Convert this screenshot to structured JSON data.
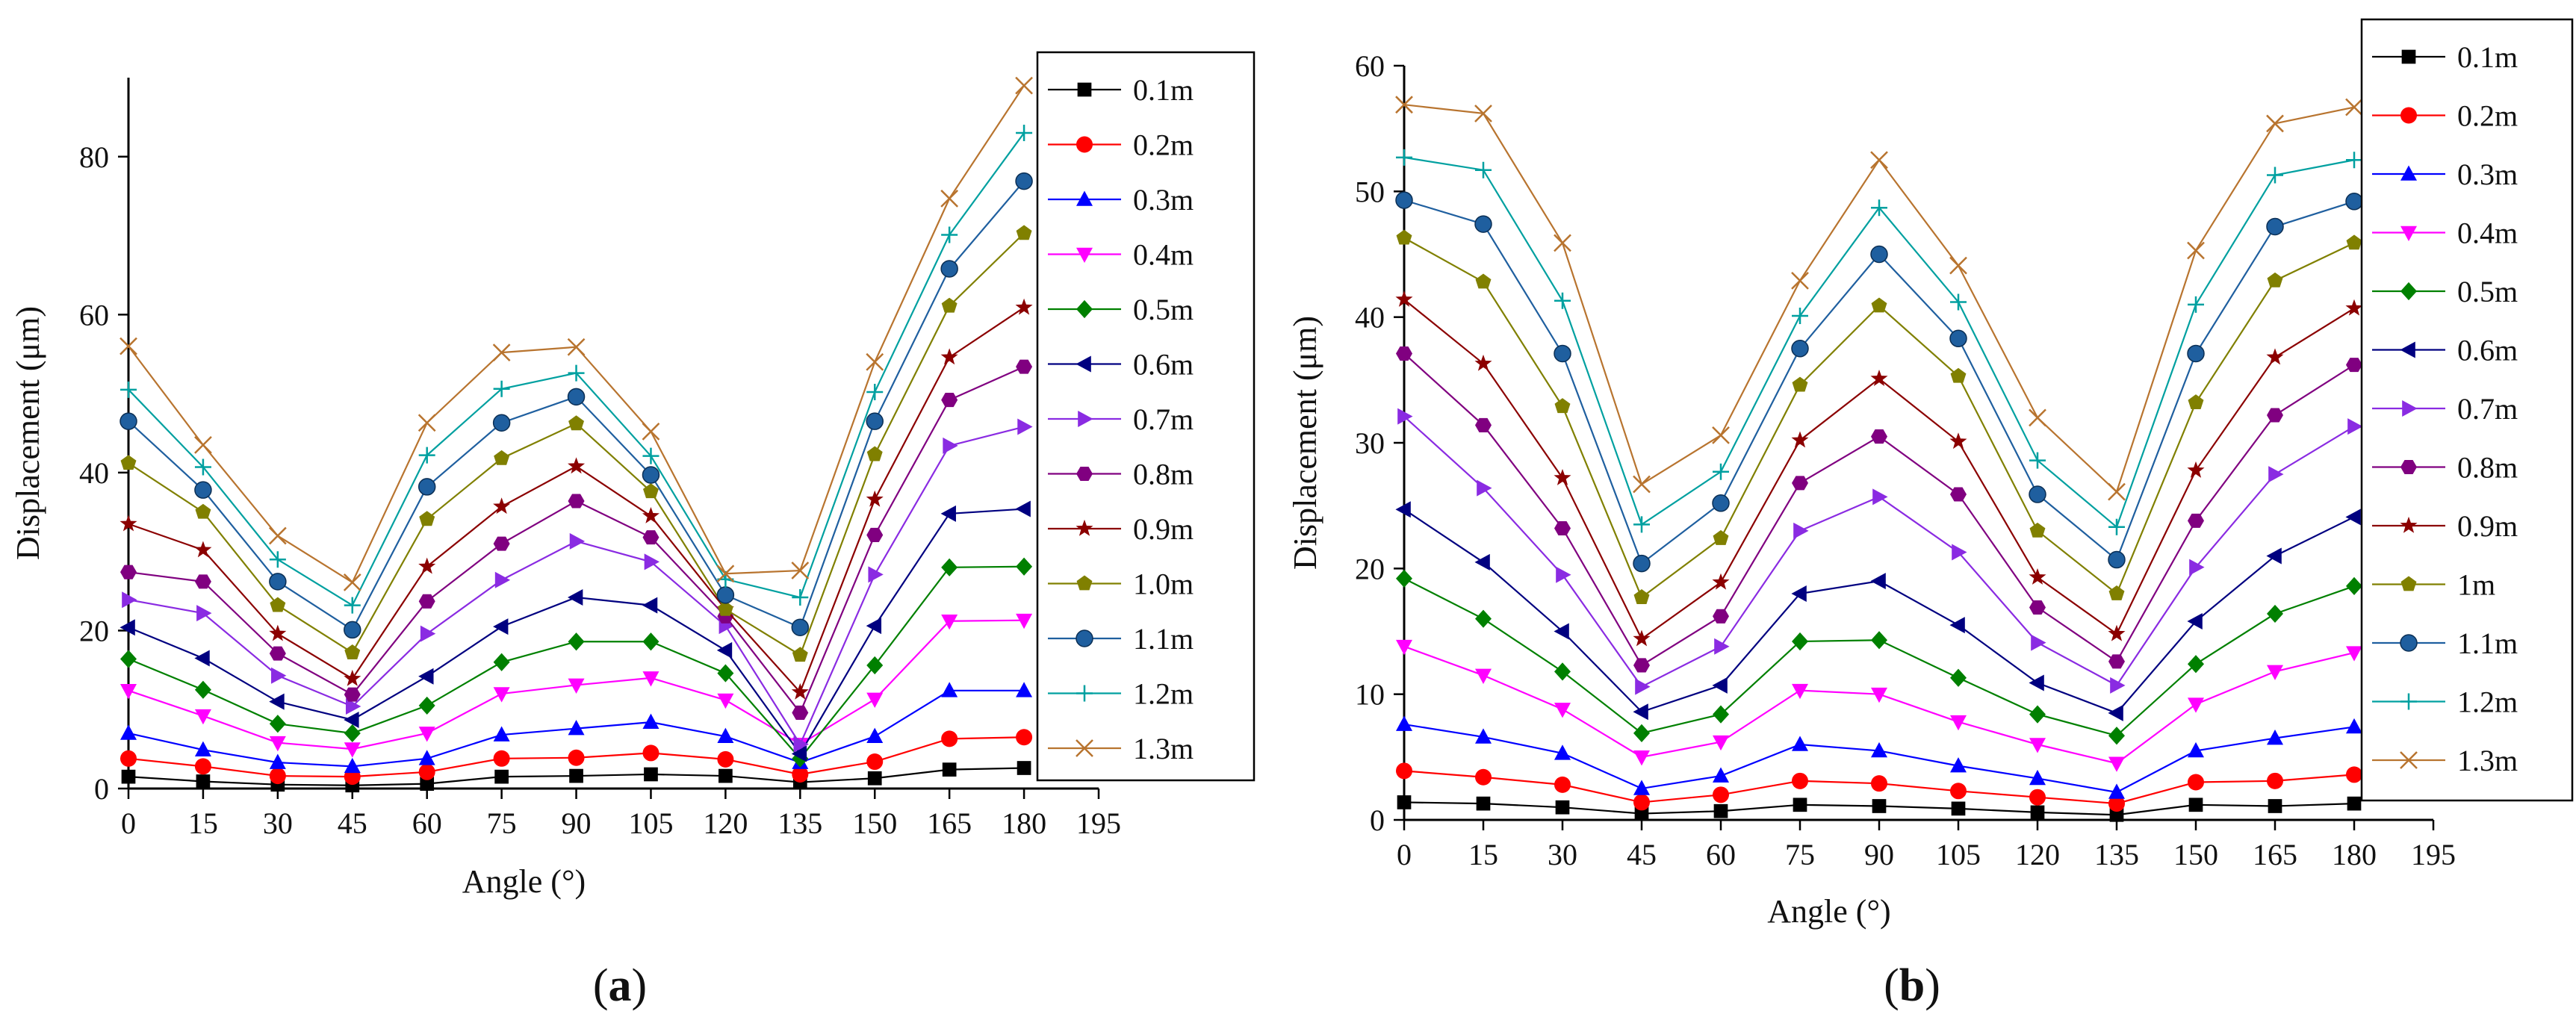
{
  "chart_data": [
    {
      "type": "line",
      "panel_label": "a",
      "xlabel": "Angle (°)",
      "ylabel": "Displacement (μm)",
      "xlim": [
        0,
        195
      ],
      "ylim": [
        0,
        90
      ],
      "xticks": [
        0,
        15,
        30,
        45,
        60,
        75,
        90,
        105,
        120,
        135,
        150,
        165,
        180,
        195
      ],
      "yticks": [
        0,
        20,
        40,
        60,
        80
      ],
      "x": [
        0,
        15,
        30,
        45,
        60,
        75,
        90,
        105,
        120,
        135,
        150,
        165,
        180
      ],
      "legend_position": "right",
      "series": [
        {
          "name": "0.1m",
          "color": "#000000",
          "marker": "square",
          "values": [
            1.5,
            0.9,
            0.5,
            0.4,
            0.6,
            1.5,
            1.6,
            1.8,
            1.6,
            0.8,
            1.3,
            2.4,
            2.6
          ]
        },
        {
          "name": "0.2m",
          "color": "#ff0000",
          "marker": "circle",
          "values": [
            3.8,
            2.8,
            1.6,
            1.5,
            2.1,
            3.8,
            3.9,
            4.5,
            3.7,
            1.8,
            3.4,
            6.3,
            6.5
          ]
        },
        {
          "name": "0.3m",
          "color": "#0000ff",
          "marker": "triangle-up",
          "values": [
            7.0,
            4.9,
            3.3,
            2.8,
            3.8,
            6.8,
            7.6,
            8.4,
            6.6,
            3.3,
            6.6,
            12.4,
            12.4
          ]
        },
        {
          "name": "0.4m",
          "color": "#ff00ff",
          "marker": "triangle-down",
          "values": [
            12.4,
            9.2,
            5.8,
            5.0,
            7.0,
            12.0,
            13.1,
            14.0,
            11.2,
            5.6,
            11.3,
            21.2,
            21.3
          ]
        },
        {
          "name": "0.5m",
          "color": "#008000",
          "marker": "diamond",
          "values": [
            16.4,
            12.5,
            8.2,
            7.0,
            10.5,
            16.0,
            18.6,
            18.6,
            14.6,
            3.8,
            15.6,
            28.0,
            28.1
          ]
        },
        {
          "name": "0.6m",
          "color": "#000080",
          "marker": "triangle-left",
          "values": [
            20.4,
            16.5,
            11.0,
            8.7,
            14.2,
            20.5,
            24.2,
            23.2,
            17.5,
            4.4,
            20.6,
            34.8,
            35.4
          ]
        },
        {
          "name": "0.7m",
          "color": "#8a2be2",
          "marker": "triangle-right",
          "values": [
            23.9,
            22.2,
            14.3,
            10.4,
            19.6,
            26.4,
            31.3,
            28.7,
            20.6,
            5.6,
            27.1,
            43.4,
            45.8
          ]
        },
        {
          "name": "0.8m",
          "color": "#800080",
          "marker": "hexagon",
          "values": [
            27.4,
            26.2,
            17.1,
            11.9,
            23.7,
            31.0,
            36.4,
            31.8,
            21.8,
            9.6,
            32.1,
            49.2,
            53.4
          ]
        },
        {
          "name": "0.9m",
          "color": "#8b0000",
          "marker": "star",
          "values": [
            33.5,
            30.2,
            19.6,
            13.9,
            28.1,
            35.7,
            40.8,
            34.5,
            22.7,
            12.2,
            36.6,
            54.6,
            60.9
          ]
        },
        {
          "name": "1.0m",
          "color": "#808000",
          "marker": "pentagon",
          "values": [
            41.2,
            35.0,
            23.2,
            17.2,
            34.1,
            41.8,
            46.2,
            37.6,
            22.7,
            16.9,
            42.3,
            61.1,
            70.3
          ]
        },
        {
          "name": "1.1m",
          "color": "#1f5f9f",
          "marker": "sphere",
          "values": [
            46.5,
            37.8,
            26.2,
            20.1,
            38.2,
            46.3,
            49.6,
            39.7,
            24.5,
            20.4,
            46.5,
            65.8,
            76.9
          ]
        },
        {
          "name": "1.2m",
          "color": "#00a0a0",
          "marker": "plus",
          "values": [
            50.5,
            40.7,
            29.0,
            23.2,
            42.2,
            50.6,
            52.6,
            42.1,
            26.5,
            24.2,
            50.2,
            70.1,
            83.0
          ]
        },
        {
          "name": "1.3m",
          "color": "#b8742f",
          "marker": "x",
          "values": [
            56.0,
            43.5,
            32.0,
            26.1,
            46.3,
            55.2,
            55.9,
            45.2,
            27.2,
            27.6,
            54.0,
            74.7,
            89.0
          ]
        }
      ]
    },
    {
      "type": "line",
      "panel_label": "b",
      "xlabel": "Angle (°)",
      "ylabel": "Displacement (μm)",
      "xlim": [
        0,
        195
      ],
      "ylim": [
        0,
        60
      ],
      "xticks": [
        0,
        15,
        30,
        45,
        60,
        75,
        90,
        105,
        120,
        135,
        150,
        165,
        180,
        195
      ],
      "yticks": [
        0,
        10,
        20,
        30,
        40,
        50,
        60
      ],
      "x": [
        0,
        15,
        30,
        45,
        60,
        75,
        90,
        105,
        120,
        135,
        150,
        165,
        180
      ],
      "legend_position": "right",
      "series": [
        {
          "name": "0.1m",
          "color": "#000000",
          "marker": "square",
          "values": [
            1.4,
            1.3,
            1.0,
            0.5,
            0.7,
            1.2,
            1.1,
            0.9,
            0.6,
            0.4,
            1.2,
            1.1,
            1.3
          ]
        },
        {
          "name": "0.2m",
          "color": "#ff0000",
          "marker": "circle",
          "values": [
            3.9,
            3.4,
            2.8,
            1.4,
            2.0,
            3.1,
            2.9,
            2.3,
            1.8,
            1.3,
            3.0,
            3.1,
            3.6
          ]
        },
        {
          "name": "0.3m",
          "color": "#0000ff",
          "marker": "triangle-up",
          "values": [
            7.6,
            6.6,
            5.3,
            2.5,
            3.5,
            6.0,
            5.5,
            4.3,
            3.3,
            2.2,
            5.5,
            6.5,
            7.4
          ]
        },
        {
          "name": "0.4m",
          "color": "#ff00ff",
          "marker": "triangle-down",
          "values": [
            13.8,
            11.5,
            8.8,
            5.0,
            6.2,
            10.3,
            10.0,
            7.8,
            6.0,
            4.5,
            9.2,
            11.8,
            13.3
          ]
        },
        {
          "name": "0.5m",
          "color": "#008000",
          "marker": "diamond",
          "values": [
            19.2,
            16.0,
            11.8,
            6.9,
            8.4,
            14.2,
            14.3,
            11.3,
            8.4,
            6.7,
            12.4,
            16.4,
            18.6
          ]
        },
        {
          "name": "0.6m",
          "color": "#000080",
          "marker": "triangle-left",
          "values": [
            24.7,
            20.5,
            15.0,
            8.6,
            10.7,
            18.0,
            19.0,
            15.5,
            10.9,
            8.5,
            15.8,
            21.0,
            24.1
          ]
        },
        {
          "name": "0.7m",
          "color": "#8a2be2",
          "marker": "triangle-right",
          "values": [
            32.1,
            26.4,
            19.5,
            10.6,
            13.8,
            23.0,
            25.7,
            21.3,
            14.1,
            10.7,
            20.1,
            27.5,
            31.3
          ]
        },
        {
          "name": "0.8m",
          "color": "#800080",
          "marker": "hexagon",
          "values": [
            37.1,
            31.4,
            23.2,
            12.3,
            16.2,
            26.8,
            30.5,
            25.9,
            16.9,
            12.6,
            23.8,
            32.2,
            36.2
          ]
        },
        {
          "name": "0.9m",
          "color": "#8b0000",
          "marker": "star",
          "values": [
            41.4,
            36.3,
            27.2,
            14.4,
            18.9,
            30.2,
            35.1,
            30.1,
            19.3,
            14.8,
            27.8,
            36.8,
            40.7
          ]
        },
        {
          "name": "1m",
          "color": "#808000",
          "marker": "pentagon",
          "values": [
            46.3,
            42.8,
            32.9,
            17.7,
            22.4,
            34.6,
            40.9,
            35.3,
            23.0,
            18.0,
            33.2,
            42.9,
            45.9
          ]
        },
        {
          "name": "1.1m",
          "color": "#1f5f9f",
          "marker": "sphere",
          "values": [
            49.3,
            47.4,
            37.1,
            20.4,
            25.2,
            37.5,
            45.0,
            38.3,
            25.9,
            20.7,
            37.1,
            47.2,
            49.2
          ]
        },
        {
          "name": "1.2m",
          "color": "#00a0a0",
          "marker": "plus",
          "values": [
            52.7,
            51.7,
            41.3,
            23.5,
            27.7,
            40.1,
            48.7,
            41.2,
            28.6,
            23.3,
            41.0,
            51.3,
            52.5
          ]
        },
        {
          "name": "1.3m",
          "color": "#b8742f",
          "marker": "x",
          "values": [
            56.9,
            56.2,
            45.9,
            26.7,
            30.6,
            42.9,
            52.5,
            44.1,
            32.0,
            26.1,
            45.3,
            55.4,
            56.7
          ]
        }
      ]
    }
  ]
}
